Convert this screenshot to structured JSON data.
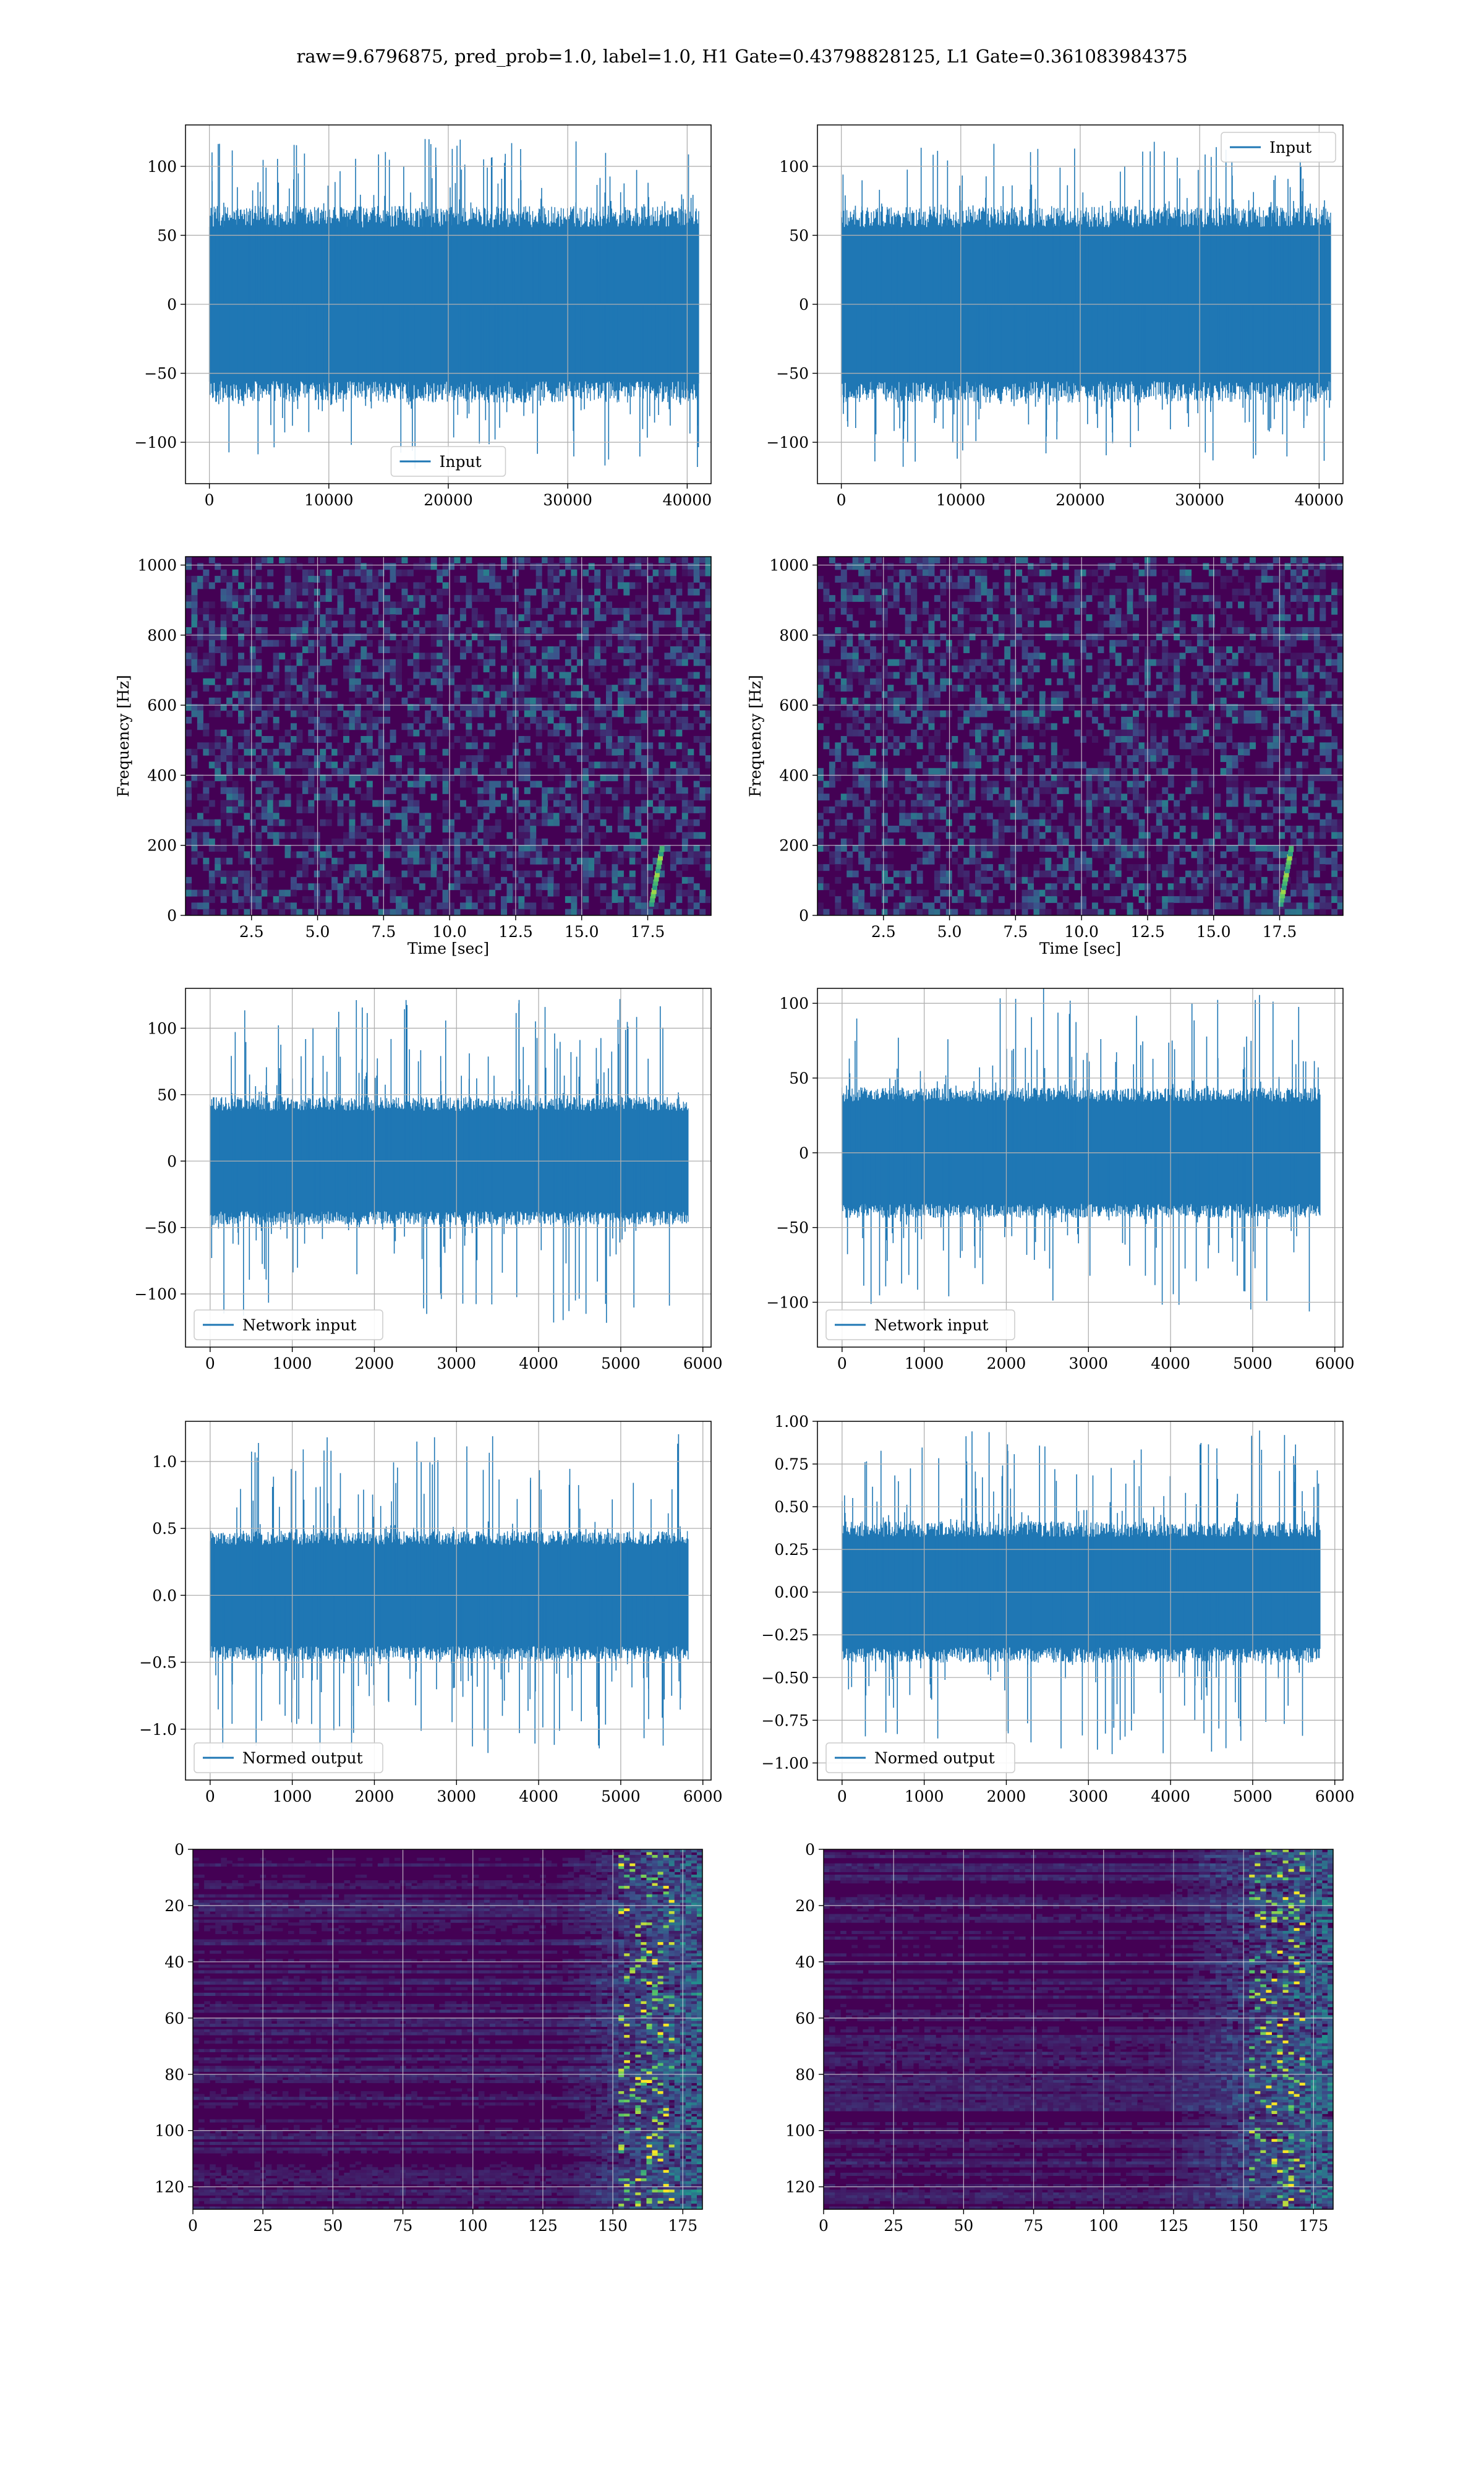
{
  "title": "raw=9.6796875, pred_prob=1.0, label=1.0, H1 Gate=0.43798828125, L1 Gate=0.361083984375",
  "colors": {
    "line": "#1f77b4",
    "grid": "#b0b0b0",
    "heat_low": "#440154",
    "heat_mid": "#21918c",
    "heat_high": "#fde725"
  },
  "chart_data": [
    {
      "id": "r0c0",
      "type": "line",
      "row": 0,
      "col": 0,
      "legend": "Input",
      "legend_loc": "lower-center",
      "xlim": [
        -2000,
        42000
      ],
      "ylim": [
        -130,
        130
      ],
      "xticks": [
        0,
        10000,
        20000,
        30000,
        40000
      ],
      "yticks": [
        -100,
        -50,
        0,
        50,
        100
      ],
      "x_range": [
        0,
        40960
      ],
      "core": 62,
      "peak": 120,
      "xlabel": "",
      "ylabel": ""
    },
    {
      "id": "r0c1",
      "type": "line",
      "row": 0,
      "col": 1,
      "legend": "Input",
      "legend_loc": "upper-right",
      "xlim": [
        -2000,
        42000
      ],
      "ylim": [
        -130,
        130
      ],
      "xticks": [
        0,
        10000,
        20000,
        30000,
        40000
      ],
      "yticks": [
        -100,
        -50,
        0,
        50,
        100
      ],
      "x_range": [
        0,
        40960
      ],
      "core": 62,
      "peak": 118,
      "xlabel": "",
      "ylabel": ""
    },
    {
      "id": "r1c0",
      "type": "heatmap",
      "row": 1,
      "col": 0,
      "legend": "",
      "xlim": [
        0,
        19.9
      ],
      "ylim": [
        0,
        1024
      ],
      "xticks": [
        2.5,
        5.0,
        7.5,
        10.0,
        12.5,
        15.0,
        17.5
      ],
      "yticks": [
        0,
        200,
        400,
        600,
        800,
        1000
      ],
      "xlabel": "Time [sec]",
      "ylabel": "Frequency [Hz]",
      "chirp_time": 18.0
    },
    {
      "id": "r1c1",
      "type": "heatmap",
      "row": 1,
      "col": 1,
      "legend": "",
      "xlim": [
        0,
        19.9
      ],
      "ylim": [
        0,
        1024
      ],
      "xticks": [
        2.5,
        5.0,
        7.5,
        10.0,
        12.5,
        15.0,
        17.5
      ],
      "yticks": [
        0,
        200,
        400,
        600,
        800,
        1000
      ],
      "xlabel": "Time [sec]",
      "ylabel": "Frequency [Hz]",
      "chirp_time": 17.9
    },
    {
      "id": "r2c0",
      "type": "line",
      "row": 2,
      "col": 0,
      "legend": "Network input",
      "legend_loc": "lower-left",
      "xlim": [
        -300,
        6100
      ],
      "ylim": [
        -140,
        130
      ],
      "xticks": [
        0,
        1000,
        2000,
        3000,
        4000,
        5000,
        6000
      ],
      "yticks": [
        -100,
        -50,
        0,
        50,
        100
      ],
      "x_range": [
        0,
        5820
      ],
      "core": 42,
      "peak": 122,
      "xlabel": "",
      "ylabel": ""
    },
    {
      "id": "r2c1",
      "type": "line",
      "row": 2,
      "col": 1,
      "legend": "Network input",
      "legend_loc": "lower-left",
      "xlim": [
        -300,
        6100
      ],
      "ylim": [
        -130,
        110
      ],
      "xticks": [
        0,
        1000,
        2000,
        3000,
        4000,
        5000,
        6000
      ],
      "yticks": [
        -100,
        -50,
        0,
        50,
        100
      ],
      "x_range": [
        0,
        5820
      ],
      "core": 38,
      "peak": 110,
      "xlabel": "",
      "ylabel": ""
    },
    {
      "id": "r3c0",
      "type": "line",
      "row": 3,
      "col": 0,
      "legend": "Normed output",
      "legend_loc": "lower-left",
      "xlim": [
        -300,
        6100
      ],
      "ylim": [
        -1.38,
        1.3
      ],
      "xticks": [
        0,
        1000,
        2000,
        3000,
        4000,
        5000,
        6000
      ],
      "yticks": [
        -1.0,
        -0.5,
        0.0,
        0.5,
        1.0
      ],
      "ytick_labels": [
        "−1.0",
        "−0.5",
        "0.0",
        "0.5",
        "1.0"
      ],
      "x_range": [
        0,
        5820
      ],
      "core": 0.42,
      "peak": 1.21,
      "xlabel": "",
      "ylabel": ""
    },
    {
      "id": "r3c1",
      "type": "line",
      "row": 3,
      "col": 1,
      "legend": "Normed output",
      "legend_loc": "lower-left",
      "xlim": [
        -300,
        6100
      ],
      "ylim": [
        -1.1,
        1.0
      ],
      "xticks": [
        0,
        1000,
        2000,
        3000,
        4000,
        5000,
        6000
      ],
      "yticks": [
        -1.0,
        -0.75,
        -0.5,
        -0.25,
        0.0,
        0.25,
        0.5,
        0.75,
        1.0
      ],
      "ytick_labels": [
        "−1.00",
        "−0.75",
        "−0.50",
        "−0.25",
        "0.00",
        "0.25",
        "0.50",
        "0.75",
        "1.00"
      ],
      "x_range": [
        0,
        5820
      ],
      "core": 0.36,
      "peak": 0.95,
      "xlabel": "",
      "ylabel": ""
    },
    {
      "id": "r4c0",
      "type": "heatmap",
      "row": 4,
      "col": 0,
      "legend": "",
      "inverted_y": true,
      "xlim": [
        0,
        182
      ],
      "ylim": [
        128,
        0
      ],
      "xticks": [
        0,
        25,
        50,
        75,
        100,
        125,
        150,
        175
      ],
      "yticks": [
        0,
        20,
        40,
        60,
        80,
        100,
        120
      ],
      "xlabel": "",
      "ylabel": "",
      "activity_start": 130
    },
    {
      "id": "r4c1",
      "type": "heatmap",
      "row": 4,
      "col": 1,
      "legend": "",
      "inverted_y": true,
      "xlim": [
        0,
        182
      ],
      "ylim": [
        128,
        0
      ],
      "xticks": [
        0,
        25,
        50,
        75,
        100,
        125,
        150,
        175
      ],
      "yticks": [
        0,
        20,
        40,
        60,
        80,
        100,
        120
      ],
      "xlabel": "",
      "ylabel": "",
      "activity_start": 120
    }
  ]
}
